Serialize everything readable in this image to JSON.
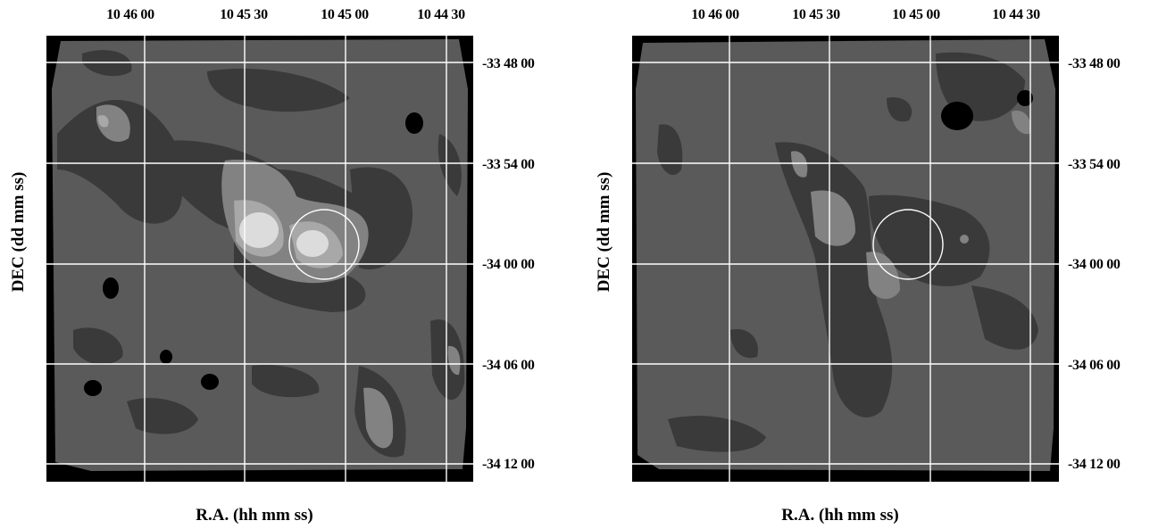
{
  "panels": [
    {
      "ra_ticks": [
        "10 46 00",
        "10 45 30",
        "10 45 00",
        "10 44 30"
      ],
      "dec_ticks": [
        "-33 48 00",
        "-33 54 00",
        "-34 00 00",
        "-34 06 00",
        "-34 12 00"
      ],
      "xlabel": "R.A. (hh mm ss)",
      "ylabel": "DEC (dd mm ss)"
    },
    {
      "ra_ticks": [
        "10 46 00",
        "10 45 30",
        "10 45 00",
        "10 44 30"
      ],
      "dec_ticks": [
        "-33 48 00",
        "-33 54 00",
        "-34 00 00",
        "-34 06 00",
        "-34 12 00"
      ],
      "xlabel": "R.A. (hh mm ss)",
      "ylabel": "DEC (dd mm ss)"
    }
  ],
  "colors": {
    "background_fill": "#000000",
    "map_base": "#5a5a5a",
    "dark_contour": "#3a3a3a",
    "mid_light": "#828282",
    "bright": "#a8a8a8",
    "brightest": "#dcdcdc",
    "grid_and_circle": "#ffffff"
  }
}
